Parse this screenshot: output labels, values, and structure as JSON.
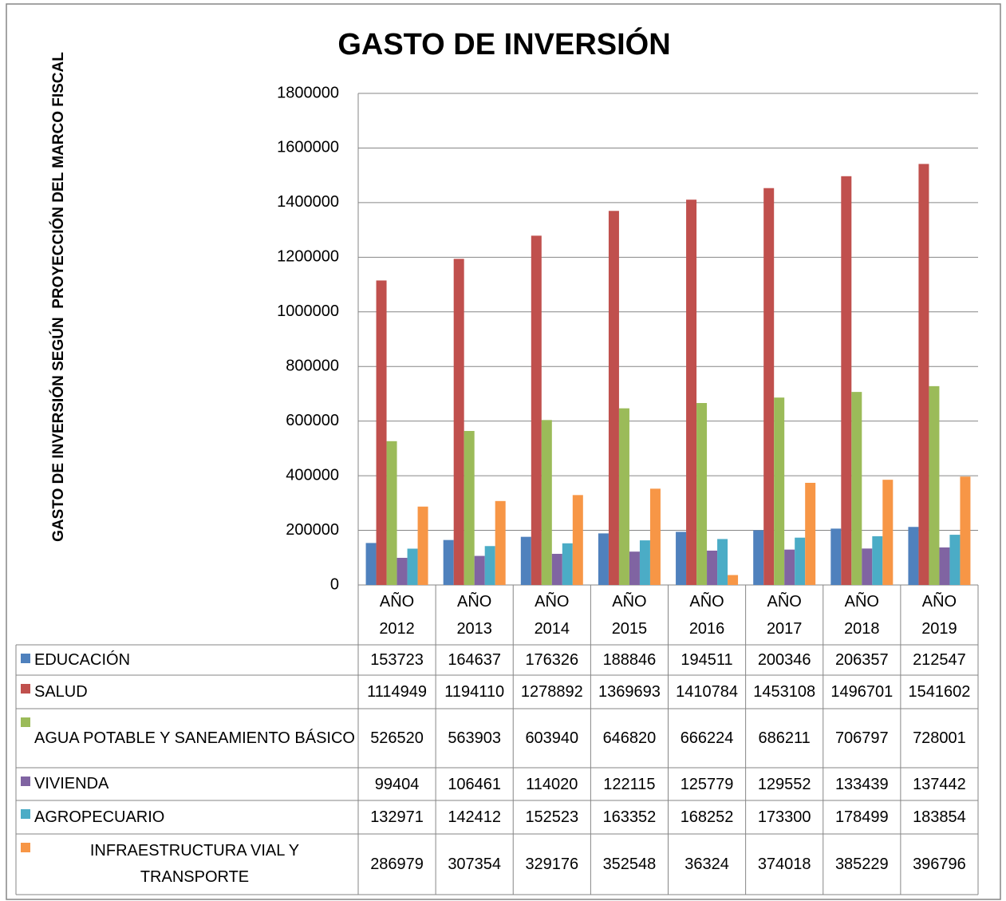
{
  "chart_data": {
    "type": "bar",
    "title": "GASTO DE INVERSIÓN",
    "y_label": "GASTO DE INVERSIÓN SEGÚN  PROYECCIÓN DEL MARCO FISCAL",
    "categories": [
      "AÑO 2012",
      "AÑO 2013",
      "AÑO 2014",
      "AÑO 2015",
      "AÑO 2016",
      "AÑO 2017",
      "AÑO 2018",
      "AÑO 2019"
    ],
    "series": [
      {
        "name": "EDUCACIÓN",
        "color": "#4f81bd",
        "values": [
          153723,
          164637,
          176326,
          188846,
          194511,
          200346,
          206357,
          212547
        ]
      },
      {
        "name": "SALUD",
        "color": "#c0504d",
        "values": [
          1114949,
          1194110,
          1278892,
          1369693,
          1410784,
          1453108,
          1496701,
          1541602
        ]
      },
      {
        "name": "AGUA POTABLE Y SANEAMIENTO BÁSICO",
        "color": "#9bbb59",
        "values": [
          526520,
          563903,
          603940,
          646820,
          666224,
          686211,
          706797,
          728001
        ]
      },
      {
        "name": "VIVIENDA",
        "color": "#8064a2",
        "values": [
          99404,
          106461,
          114020,
          122115,
          125779,
          129552,
          133439,
          137442
        ]
      },
      {
        "name": "AGROPECUARIO",
        "color": "#4bacc6",
        "values": [
          132971,
          142412,
          152523,
          163352,
          168252,
          173300,
          178499,
          183854
        ]
      },
      {
        "name": "INFRAESTRUCTURA VIAL Y TRANSPORTE",
        "color": "#f79646",
        "values": [
          286979,
          307354,
          329176,
          352548,
          36324,
          374018,
          385229,
          396796
        ]
      }
    ],
    "ylim": [
      0,
      1800000
    ],
    "yticks": [
      0,
      200000,
      400000,
      600000,
      800000,
      1000000,
      1200000,
      1400000,
      1600000,
      1800000
    ],
    "grid": true,
    "data_table": true
  }
}
